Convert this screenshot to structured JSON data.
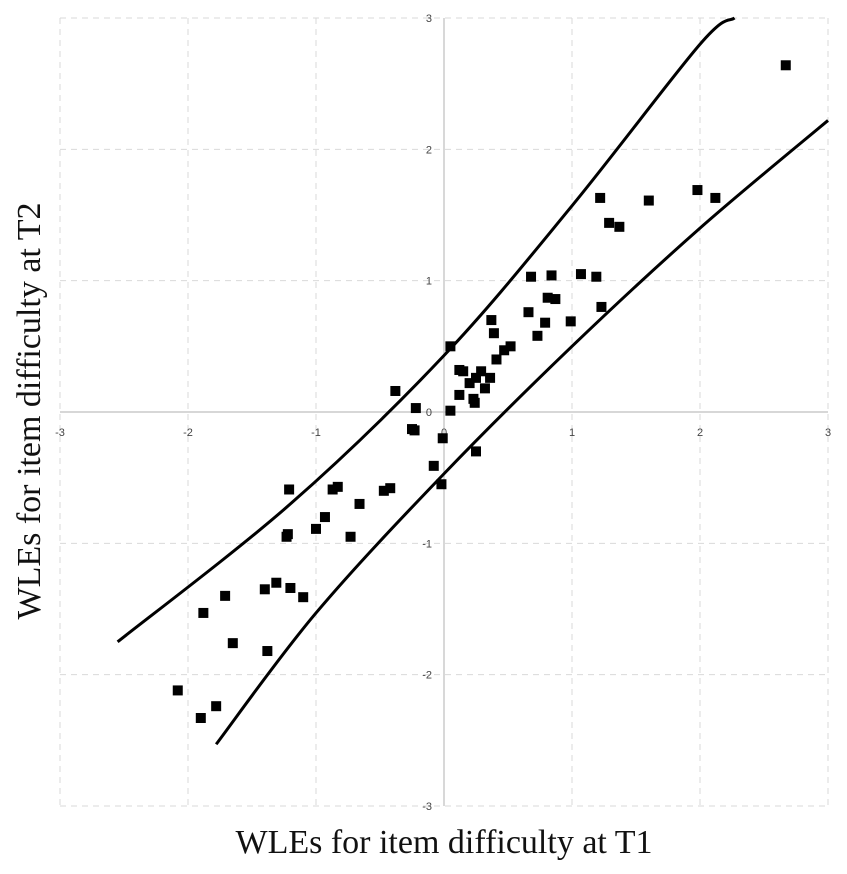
{
  "chart_data": {
    "type": "scatter",
    "xlabel": "WLEs for item difficulty at T1",
    "ylabel": "WLEs for item difficulty at T2",
    "xlim": [
      -3,
      3
    ],
    "ylim": [
      -3,
      3
    ],
    "xticks": [
      -3,
      -2,
      -1,
      0,
      1,
      2,
      3
    ],
    "yticks": [
      -3,
      -2,
      -1,
      0,
      1,
      2,
      3
    ],
    "grid": true,
    "marker": "square",
    "marker_color": "#000000",
    "points": [
      {
        "x": 2.67,
        "y": 2.64
      },
      {
        "x": 1.98,
        "y": 1.69
      },
      {
        "x": 2.12,
        "y": 1.63
      },
      {
        "x": 1.6,
        "y": 1.61
      },
      {
        "x": 1.22,
        "y": 1.63
      },
      {
        "x": 1.29,
        "y": 1.44
      },
      {
        "x": 1.37,
        "y": 1.41
      },
      {
        "x": 1.07,
        "y": 1.05
      },
      {
        "x": 1.19,
        "y": 1.03
      },
      {
        "x": 0.84,
        "y": 1.04
      },
      {
        "x": 0.68,
        "y": 1.03
      },
      {
        "x": 0.81,
        "y": 0.87
      },
      {
        "x": 0.87,
        "y": 0.86
      },
      {
        "x": 1.23,
        "y": 0.8
      },
      {
        "x": 0.66,
        "y": 0.76
      },
      {
        "x": 0.79,
        "y": 0.68
      },
      {
        "x": 0.99,
        "y": 0.69
      },
      {
        "x": 0.73,
        "y": 0.58
      },
      {
        "x": 0.37,
        "y": 0.7
      },
      {
        "x": 0.39,
        "y": 0.6
      },
      {
        "x": 0.05,
        "y": 0.5
      },
      {
        "x": 0.52,
        "y": 0.5
      },
      {
        "x": 0.47,
        "y": 0.47
      },
      {
        "x": 0.41,
        "y": 0.4
      },
      {
        "x": 0.12,
        "y": 0.32
      },
      {
        "x": 0.15,
        "y": 0.31
      },
      {
        "x": 0.29,
        "y": 0.31
      },
      {
        "x": 0.25,
        "y": 0.26
      },
      {
        "x": 0.36,
        "y": 0.26
      },
      {
        "x": 0.2,
        "y": 0.22
      },
      {
        "x": 0.32,
        "y": 0.18
      },
      {
        "x": 0.12,
        "y": 0.13
      },
      {
        "x": 0.23,
        "y": 0.1
      },
      {
        "x": 0.24,
        "y": 0.07
      },
      {
        "x": 0.05,
        "y": 0.01
      },
      {
        "x": -0.38,
        "y": 0.16
      },
      {
        "x": -0.22,
        "y": 0.03
      },
      {
        "x": -0.25,
        "y": -0.13
      },
      {
        "x": -0.23,
        "y": -0.14
      },
      {
        "x": -0.01,
        "y": -0.2
      },
      {
        "x": 0.25,
        "y": -0.3
      },
      {
        "x": -0.08,
        "y": -0.41
      },
      {
        "x": -0.02,
        "y": -0.55
      },
      {
        "x": -0.42,
        "y": -0.58
      },
      {
        "x": -0.47,
        "y": -0.6
      },
      {
        "x": -0.83,
        "y": -0.57
      },
      {
        "x": -0.87,
        "y": -0.59
      },
      {
        "x": -1.21,
        "y": -0.59
      },
      {
        "x": -0.66,
        "y": -0.7
      },
      {
        "x": -0.93,
        "y": -0.8
      },
      {
        "x": -1.0,
        "y": -0.89
      },
      {
        "x": -1.22,
        "y": -0.93
      },
      {
        "x": -1.23,
        "y": -0.95
      },
      {
        "x": -0.73,
        "y": -0.95
      },
      {
        "x": -1.31,
        "y": -1.3
      },
      {
        "x": -1.4,
        "y": -1.35
      },
      {
        "x": -1.2,
        "y": -1.34
      },
      {
        "x": -1.1,
        "y": -1.41
      },
      {
        "x": -1.71,
        "y": -1.4
      },
      {
        "x": -1.88,
        "y": -1.53
      },
      {
        "x": -1.65,
        "y": -1.76
      },
      {
        "x": -1.38,
        "y": -1.82
      },
      {
        "x": -2.08,
        "y": -2.12
      },
      {
        "x": -1.78,
        "y": -2.24
      },
      {
        "x": -1.9,
        "y": -2.33
      }
    ],
    "confidence_bounds": [
      {
        "name": "",
        "x": [
          -2.55,
          -1.2,
          0.0,
          1.0,
          2.0,
          2.27
        ],
        "y": [
          -1.75,
          -0.7,
          0.43,
          1.57,
          2.8,
          3.0
        ]
      },
      {
        "name": "",
        "x": [
          -1.78,
          -1.0,
          0.0,
          1.0,
          2.0,
          3.0
        ],
        "y": [
          -2.53,
          -1.53,
          -0.47,
          0.5,
          1.4,
          2.22
        ]
      }
    ]
  }
}
